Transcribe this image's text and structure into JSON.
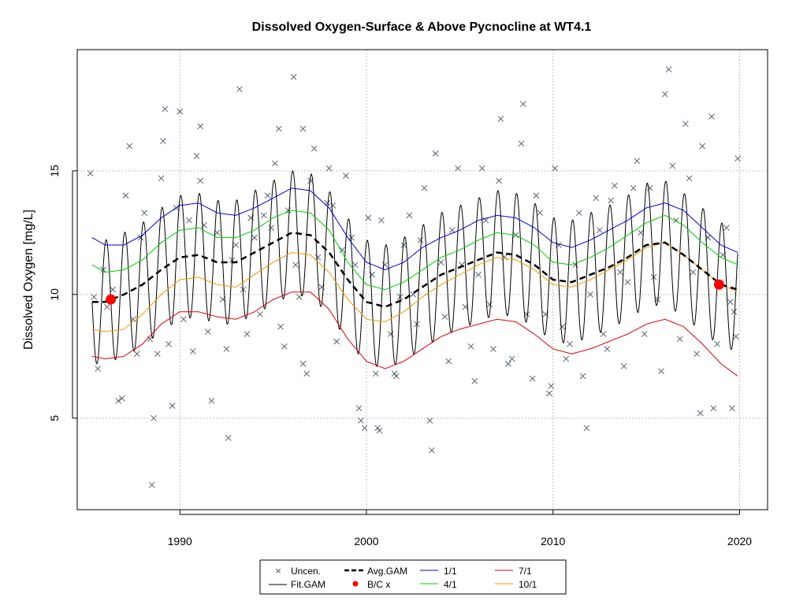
{
  "chart_data": {
    "type": "line",
    "title": "Dissolved Oxygen-Surface & Above Pycnocline at WT4.1",
    "xlabel": "",
    "ylabel": "Dissolved Oxygen [mg/L]",
    "xlim": [
      1984.5,
      2021.5
    ],
    "ylim": [
      1.3,
      19.9
    ],
    "x_ticks": [
      1990,
      2000,
      2010,
      2020
    ],
    "y_ticks": [
      5,
      10,
      15
    ],
    "grid": true,
    "legend_position": "bottom-center",
    "season_amplitude": 2.5,
    "legend": {
      "uncen": "Uncen.",
      "fit_gam": "Fit.GAM",
      "avg_gam": "Avg.GAM",
      "bc": "B/C x",
      "s1": "1/1",
      "s4": "4/1",
      "s7": "7/1",
      "s10": "10/1"
    },
    "colors": {
      "points": "#4a5566",
      "fit": "#000000",
      "avg": "#000000",
      "bc": "#ff0000",
      "s1": "#0000cc",
      "s4": "#00cc00",
      "s7": "#dd0000",
      "s10": "#ee9900",
      "grid": "#c0c0c0"
    },
    "avg_gam": {
      "x": [
        1985.3,
        1986,
        1987,
        1988,
        1989,
        1990,
        1991,
        1992,
        1993,
        1994,
        1995,
        1996,
        1997,
        1998,
        1999,
        2000,
        2001,
        2002,
        2003,
        2004,
        2005,
        2006,
        2007,
        2008,
        2009,
        2010,
        2011,
        2012,
        2013,
        2014,
        2015,
        2016,
        2017,
        2018,
        2019,
        2019.9
      ],
      "y": [
        9.7,
        9.7,
        10.0,
        10.4,
        11.0,
        11.5,
        11.6,
        11.3,
        11.3,
        11.7,
        12.1,
        12.5,
        12.4,
        11.7,
        10.6,
        9.7,
        9.5,
        9.8,
        10.3,
        10.8,
        11.1,
        11.4,
        11.7,
        11.6,
        11.2,
        10.6,
        10.5,
        10.8,
        11.1,
        11.5,
        12.0,
        12.1,
        11.6,
        11.0,
        10.4,
        10.2
      ]
    },
    "series": [
      {
        "name": "1/1",
        "x": [
          1985.3,
          1986,
          1987,
          1988,
          1989,
          1990,
          1991,
          1992,
          1993,
          1994,
          1995,
          1996,
          1997,
          1998,
          1999,
          2000,
          2001,
          2002,
          2003,
          2004,
          2005,
          2006,
          2007,
          2008,
          2009,
          2010,
          2011,
          2012,
          2013,
          2014,
          2015,
          2016,
          2017,
          2018,
          2019,
          2019.9
        ],
        "y": [
          12.3,
          12.0,
          12.0,
          12.4,
          13.1,
          13.6,
          13.7,
          13.3,
          13.2,
          13.5,
          13.9,
          14.3,
          14.2,
          13.5,
          12.3,
          11.3,
          11.0,
          11.3,
          11.9,
          12.3,
          12.6,
          13.0,
          13.2,
          13.1,
          12.7,
          12.1,
          11.9,
          12.2,
          12.6,
          13.0,
          13.5,
          13.7,
          13.4,
          12.7,
          12.0,
          11.7
        ]
      },
      {
        "name": "4/1",
        "x": [
          1985.3,
          1986,
          1987,
          1988,
          1989,
          1990,
          1991,
          1992,
          1993,
          1994,
          1995,
          1996,
          1997,
          1998,
          1999,
          2000,
          2001,
          2002,
          2003,
          2004,
          2005,
          2006,
          2007,
          2008,
          2009,
          2010,
          2011,
          2012,
          2013,
          2014,
          2015,
          2016,
          2017,
          2018,
          2019,
          2019.9
        ],
        "y": [
          11.2,
          10.9,
          11.0,
          11.4,
          12.1,
          12.6,
          12.7,
          12.3,
          12.3,
          12.6,
          13.1,
          13.4,
          13.3,
          12.6,
          11.3,
          10.4,
          10.2,
          10.5,
          11.0,
          11.5,
          11.8,
          12.2,
          12.5,
          12.4,
          12.0,
          11.3,
          11.2,
          11.5,
          11.9,
          12.4,
          12.9,
          13.2,
          12.8,
          12.1,
          11.5,
          11.2
        ]
      },
      {
        "name": "10/1",
        "x": [
          1985.3,
          1986,
          1987,
          1988,
          1989,
          1990,
          1991,
          1992,
          1993,
          1994,
          1995,
          1996,
          1997,
          1998,
          1999,
          2000,
          2001,
          2002,
          2003,
          2004,
          2005,
          2006,
          2007,
          2008,
          2009,
          2010,
          2011,
          2012,
          2013,
          2014,
          2015,
          2016,
          2017,
          2018,
          2019,
          2019.9
        ],
        "y": [
          8.6,
          8.5,
          8.6,
          9.2,
          10.0,
          10.6,
          10.7,
          10.4,
          10.3,
          10.8,
          11.3,
          11.7,
          11.6,
          10.9,
          9.8,
          9.0,
          8.9,
          9.3,
          9.9,
          10.4,
          10.8,
          11.2,
          11.5,
          11.4,
          11.0,
          10.4,
          10.3,
          10.6,
          11.0,
          11.4,
          11.9,
          12.1,
          11.6,
          11.0,
          10.4,
          10.1
        ]
      },
      {
        "name": "7/1",
        "x": [
          1985.3,
          1986,
          1987,
          1988,
          1989,
          1990,
          1991,
          1992,
          1993,
          1994,
          1995,
          1996,
          1997,
          1998,
          1999,
          2000,
          2001,
          2002,
          2003,
          2004,
          2005,
          2006,
          2007,
          2008,
          2009,
          2010,
          2011,
          2012,
          2013,
          2014,
          2015,
          2016,
          2017,
          2018,
          2019,
          2019.9
        ],
        "y": [
          7.5,
          7.4,
          7.5,
          8.0,
          8.8,
          9.3,
          9.3,
          9.1,
          9.0,
          9.3,
          9.8,
          10.1,
          10.1,
          9.4,
          8.2,
          7.3,
          7.0,
          7.3,
          7.8,
          8.3,
          8.6,
          8.8,
          9.0,
          8.9,
          8.4,
          7.8,
          7.6,
          7.8,
          8.1,
          8.4,
          8.8,
          9.0,
          8.7,
          8.0,
          7.2,
          6.7
        ]
      }
    ],
    "bc_points": [
      [
        1986.3,
        9.8
      ],
      [
        2018.9,
        10.4
      ]
    ],
    "points": [
      [
        1985.2,
        14.9
      ],
      [
        1985.4,
        9.9
      ],
      [
        1985.6,
        7.0
      ],
      [
        1985.9,
        11.0
      ],
      [
        1986.1,
        9.5
      ],
      [
        1986.4,
        10.2
      ],
      [
        1986.7,
        5.7
      ],
      [
        1986.9,
        5.8
      ],
      [
        1987.1,
        14.0
      ],
      [
        1987.3,
        16.0
      ],
      [
        1987.5,
        9.0
      ],
      [
        1987.7,
        7.6
      ],
      [
        1987.9,
        12.3
      ],
      [
        1988.1,
        13.3
      ],
      [
        1988.4,
        8.2
      ],
      [
        1988.6,
        5.0
      ],
      [
        1988.8,
        7.6
      ],
      [
        1988.5,
        2.3
      ],
      [
        1989.0,
        14.7
      ],
      [
        1989.1,
        16.2
      ],
      [
        1989.2,
        17.5
      ],
      [
        1989.4,
        8.0
      ],
      [
        1989.6,
        5.5
      ],
      [
        1989.8,
        13.5
      ],
      [
        1990.0,
        17.4
      ],
      [
        1990.2,
        9.0
      ],
      [
        1990.5,
        13.0
      ],
      [
        1990.7,
        7.7
      ],
      [
        1990.9,
        15.6
      ],
      [
        1991.1,
        14.6
      ],
      [
        1991.1,
        16.8
      ],
      [
        1991.3,
        12.8
      ],
      [
        1991.5,
        8.5
      ],
      [
        1991.7,
        5.7
      ],
      [
        1992.0,
        12.5
      ],
      [
        1992.3,
        9.8
      ],
      [
        1992.5,
        7.8
      ],
      [
        1992.6,
        4.2
      ],
      [
        1992.8,
        11.4
      ],
      [
        1993.0,
        12.0
      ],
      [
        1993.2,
        18.3
      ],
      [
        1993.4,
        10.2
      ],
      [
        1993.6,
        8.4
      ],
      [
        1993.8,
        13.1
      ],
      [
        1994.0,
        12.3
      ],
      [
        1994.3,
        9.2
      ],
      [
        1994.5,
        13.2
      ],
      [
        1994.7,
        14.0
      ],
      [
        1994.9,
        12.7
      ],
      [
        1995.1,
        15.3
      ],
      [
        1995.3,
        16.7
      ],
      [
        1995.4,
        8.7
      ],
      [
        1995.6,
        7.9
      ],
      [
        1995.8,
        13.4
      ],
      [
        1996.1,
        18.8
      ],
      [
        1996.2,
        11.2
      ],
      [
        1996.4,
        9.9
      ],
      [
        1996.6,
        7.2
      ],
      [
        1996.8,
        6.8
      ],
      [
        1996.6,
        16.7
      ],
      [
        1997.0,
        14.6
      ],
      [
        1997.2,
        15.9
      ],
      [
        1997.4,
        11.5
      ],
      [
        1997.6,
        10.3
      ],
      [
        1997.9,
        13.7
      ],
      [
        1998.0,
        15.1
      ],
      [
        1998.2,
        13.6
      ],
      [
        1998.4,
        8.1
      ],
      [
        1998.7,
        11.8
      ],
      [
        1998.9,
        14.8
      ],
      [
        1999.2,
        12.3
      ],
      [
        1999.4,
        11.2
      ],
      [
        1999.6,
        5.4
      ],
      [
        1999.7,
        4.9
      ],
      [
        1999.9,
        4.6
      ],
      [
        2000.1,
        13.1
      ],
      [
        2000.3,
        10.8
      ],
      [
        2000.5,
        6.8
      ],
      [
        2000.6,
        4.6
      ],
      [
        2000.7,
        4.5
      ],
      [
        2000.8,
        13.0
      ],
      [
        2001.0,
        11.2
      ],
      [
        2001.3,
        8.4
      ],
      [
        2001.5,
        6.8
      ],
      [
        2001.6,
        6.7
      ],
      [
        2001.8,
        9.9
      ],
      [
        2002.0,
        12.0
      ],
      [
        2002.3,
        13.2
      ],
      [
        2002.5,
        10.0
      ],
      [
        2002.7,
        8.8
      ],
      [
        2002.9,
        12.2
      ],
      [
        2003.1,
        14.3
      ],
      [
        2003.4,
        4.9
      ],
      [
        2003.5,
        3.7
      ],
      [
        2003.7,
        15.7
      ],
      [
        2004.0,
        11.3
      ],
      [
        2004.2,
        9.1
      ],
      [
        2004.4,
        7.3
      ],
      [
        2004.6,
        12.6
      ],
      [
        2004.9,
        15.1
      ],
      [
        2005.1,
        11.2
      ],
      [
        2005.3,
        9.5
      ],
      [
        2005.6,
        7.9
      ],
      [
        2005.8,
        6.5
      ],
      [
        2006.0,
        10.8
      ],
      [
        2006.2,
        15.1
      ],
      [
        2006.4,
        13.0
      ],
      [
        2006.6,
        9.6
      ],
      [
        2006.8,
        7.8
      ],
      [
        2007.1,
        14.6
      ],
      [
        2007.2,
        17.1
      ],
      [
        2007.4,
        11.5
      ],
      [
        2007.6,
        7.2
      ],
      [
        2007.8,
        7.4
      ],
      [
        2008.0,
        12.4
      ],
      [
        2008.3,
        16.1
      ],
      [
        2008.4,
        17.7
      ],
      [
        2008.6,
        9.2
      ],
      [
        2008.9,
        6.6
      ],
      [
        2009.1,
        14.0
      ],
      [
        2009.3,
        13.3
      ],
      [
        2009.6,
        9.2
      ],
      [
        2009.8,
        6.0
      ],
      [
        2009.9,
        6.3
      ],
      [
        2010.1,
        15.1
      ],
      [
        2010.3,
        12.0
      ],
      [
        2010.5,
        8.7
      ],
      [
        2010.7,
        7.4
      ],
      [
        2010.9,
        8.0
      ],
      [
        2011.2,
        11.2
      ],
      [
        2011.4,
        13.3
      ],
      [
        2011.6,
        6.7
      ],
      [
        2011.8,
        4.6
      ],
      [
        2012.0,
        10.0
      ],
      [
        2012.3,
        13.9
      ],
      [
        2012.5,
        12.6
      ],
      [
        2012.7,
        8.4
      ],
      [
        2012.9,
        7.8
      ],
      [
        2013.1,
        13.8
      ],
      [
        2013.3,
        14.4
      ],
      [
        2013.6,
        10.9
      ],
      [
        2013.8,
        7.1
      ],
      [
        2014.0,
        10.5
      ],
      [
        2014.3,
        14.3
      ],
      [
        2014.5,
        15.4
      ],
      [
        2014.7,
        12.5
      ],
      [
        2014.9,
        8.4
      ],
      [
        2015.2,
        14.3
      ],
      [
        2015.4,
        10.7
      ],
      [
        2015.6,
        9.8
      ],
      [
        2015.8,
        6.9
      ],
      [
        2016.0,
        18.1
      ],
      [
        2016.2,
        19.1
      ],
      [
        2016.4,
        15.2
      ],
      [
        2016.6,
        13.0
      ],
      [
        2016.8,
        8.2
      ],
      [
        2017.1,
        16.9
      ],
      [
        2017.3,
        14.7
      ],
      [
        2017.5,
        10.9
      ],
      [
        2017.7,
        7.6
      ],
      [
        2017.9,
        5.2
      ],
      [
        2018.0,
        16.0
      ],
      [
        2018.3,
        12.3
      ],
      [
        2018.5,
        17.2
      ],
      [
        2018.6,
        5.4
      ],
      [
        2018.8,
        8.0
      ],
      [
        2019.1,
        11.6
      ],
      [
        2019.3,
        12.7
      ],
      [
        2019.5,
        9.7
      ],
      [
        2019.6,
        5.4
      ],
      [
        2019.8,
        8.3
      ],
      [
        2019.9,
        15.5
      ],
      [
        2019.7,
        9.3
      ]
    ]
  }
}
